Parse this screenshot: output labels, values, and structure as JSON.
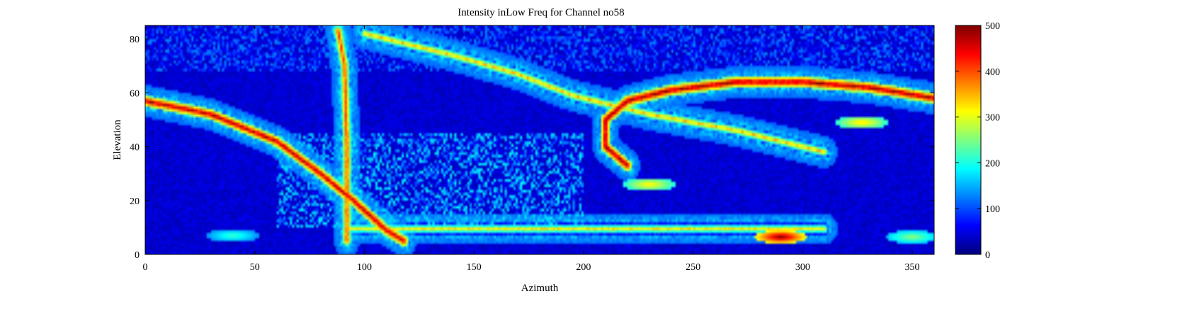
{
  "chart_data": {
    "type": "heatmap",
    "title": "Intensity inLow Freq for Channel no58",
    "xlabel": "Azimuth",
    "ylabel": "Elevation",
    "xlim": [
      0,
      360
    ],
    "ylim": [
      0,
      85
    ],
    "xticks": [
      0,
      50,
      100,
      150,
      200,
      250,
      300,
      350
    ],
    "yticks": [
      0,
      20,
      40,
      60,
      80
    ],
    "colorbar": {
      "clim": [
        0,
        500
      ],
      "ticks": [
        0,
        100,
        200,
        300,
        400,
        500
      ],
      "colormap": "jet"
    },
    "background_value": 40,
    "features": [
      {
        "name": "diagonal-arc-band",
        "shape": "polyline",
        "points": [
          [
            0,
            57
          ],
          [
            30,
            52
          ],
          [
            60,
            42
          ],
          [
            80,
            30
          ],
          [
            95,
            20
          ],
          [
            110,
            9
          ],
          [
            118,
            5
          ]
        ],
        "value": 480
      },
      {
        "name": "vertical-line-azimuth-91",
        "shape": "polyline",
        "points": [
          [
            88,
            83
          ],
          [
            91,
            70
          ],
          [
            92,
            40
          ],
          [
            92,
            5
          ]
        ],
        "value": 420
      },
      {
        "name": "upper-dotted-track",
        "shape": "polyline",
        "points": [
          [
            100,
            82
          ],
          [
            140,
            74
          ],
          [
            170,
            67
          ],
          [
            195,
            59
          ],
          [
            230,
            52
          ],
          [
            270,
            46
          ],
          [
            310,
            38
          ]
        ],
        "value": 350
      },
      {
        "name": "right-arc",
        "shape": "polyline",
        "points": [
          [
            220,
            33
          ],
          [
            210,
            40
          ],
          [
            210,
            50
          ],
          [
            220,
            57
          ],
          [
            240,
            61
          ],
          [
            270,
            64
          ],
          [
            300,
            64
          ],
          [
            330,
            62
          ],
          [
            360,
            58
          ]
        ],
        "value": 490
      },
      {
        "name": "horizontal-line-elev-9",
        "shape": "polyline",
        "points": [
          [
            92,
            9.5
          ],
          [
            310,
            9.5
          ]
        ],
        "value": 320
      },
      {
        "name": "hotspot-azimuth-290",
        "shape": "blob",
        "points": [
          [
            290,
            6.5
          ]
        ],
        "value": 500
      },
      {
        "name": "hotspot-azimuth-350",
        "shape": "blob",
        "points": [
          [
            350,
            6.5
          ]
        ],
        "value": 260
      },
      {
        "name": "hotspot-azimuth-40",
        "shape": "blob",
        "points": [
          [
            40,
            7
          ]
        ],
        "value": 220
      },
      {
        "name": "small-spot-azimuth-230",
        "shape": "blob",
        "points": [
          [
            230,
            26
          ]
        ],
        "value": 330
      },
      {
        "name": "small-spot-azimuth-327",
        "shape": "blob",
        "points": [
          [
            327,
            49
          ]
        ],
        "value": 340
      },
      {
        "name": "scattered-noise-upper",
        "shape": "region",
        "points": [
          [
            0,
            68
          ],
          [
            360,
            85
          ]
        ],
        "value": 120
      },
      {
        "name": "diffuse-wedge",
        "shape": "region",
        "points": [
          [
            60,
            10
          ],
          [
            200,
            45
          ]
        ],
        "value": 170
      }
    ]
  }
}
